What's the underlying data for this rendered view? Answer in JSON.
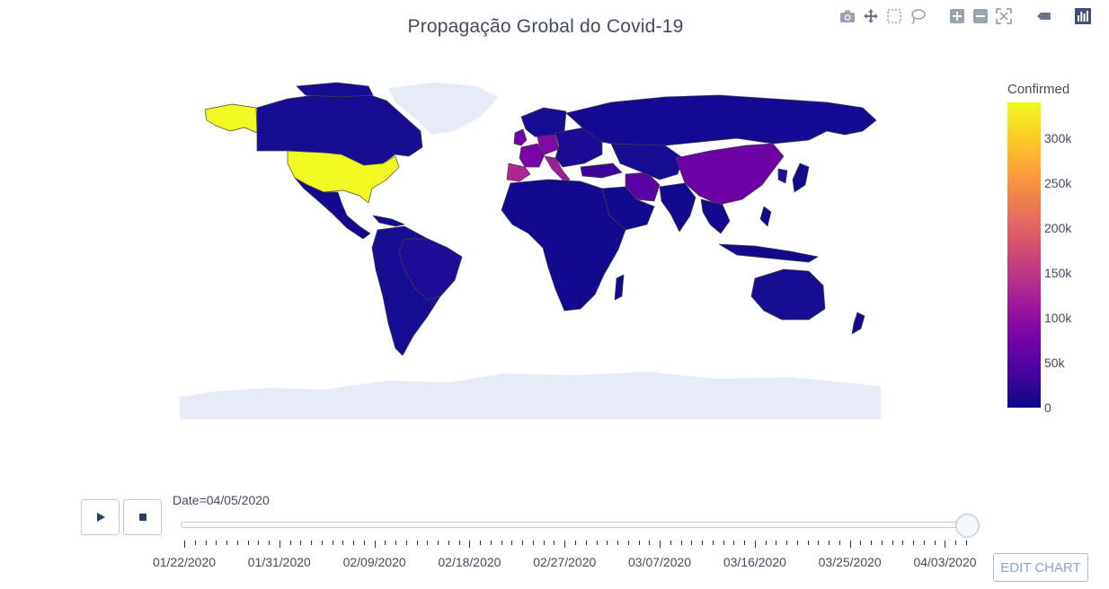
{
  "title": "Propagação Grobal do Covid-19",
  "modebar": {
    "icons": [
      "camera-icon",
      "pan-icon",
      "box-select-icon",
      "lasso-select-icon",
      "zoom-in-icon",
      "zoom-out-icon",
      "reset-axes-icon",
      "hover-icon",
      "plotly-logo-icon"
    ]
  },
  "colorbar": {
    "title": "Confirmed",
    "max": 340000,
    "ticks": [
      {
        "label": "300k",
        "value": 300000
      },
      {
        "label": "250k",
        "value": 250000
      },
      {
        "label": "200k",
        "value": 200000
      },
      {
        "label": "150k",
        "value": 150000
      },
      {
        "label": "100k",
        "value": 100000
      },
      {
        "label": "50k",
        "value": 50000
      },
      {
        "label": "0",
        "value": 0
      }
    ],
    "colorscale": [
      "#0d0887",
      "#46039f",
      "#7201a8",
      "#9c179e",
      "#bd3786",
      "#d8576b",
      "#ed7953",
      "#fb9f3a",
      "#fdca26",
      "#f0f921"
    ]
  },
  "map": {
    "land_color": "#e5ecf6",
    "border_color": "#444444",
    "highlights": [
      {
        "region": "United States",
        "level": "max"
      },
      {
        "region": "China",
        "level": "~80k"
      },
      {
        "region": "Italy",
        "level": "~125k"
      },
      {
        "region": "Spain",
        "level": "~130k"
      },
      {
        "region": "Germany",
        "level": "~100k"
      },
      {
        "region": "France",
        "level": "~90k"
      },
      {
        "region": "Iran",
        "level": "~58k"
      }
    ]
  },
  "slider": {
    "current_label": "Date=04/05/2020",
    "play_label": "play",
    "stop_label": "stop",
    "value_fraction": 1.0,
    "tick_labels": [
      "01/22/2020",
      "01/31/2020",
      "02/09/2020",
      "02/18/2020",
      "02/27/2020",
      "03/07/2020",
      "03/16/2020",
      "03/25/2020",
      "04/03/2020"
    ],
    "edit_label": "EDIT CHART"
  }
}
